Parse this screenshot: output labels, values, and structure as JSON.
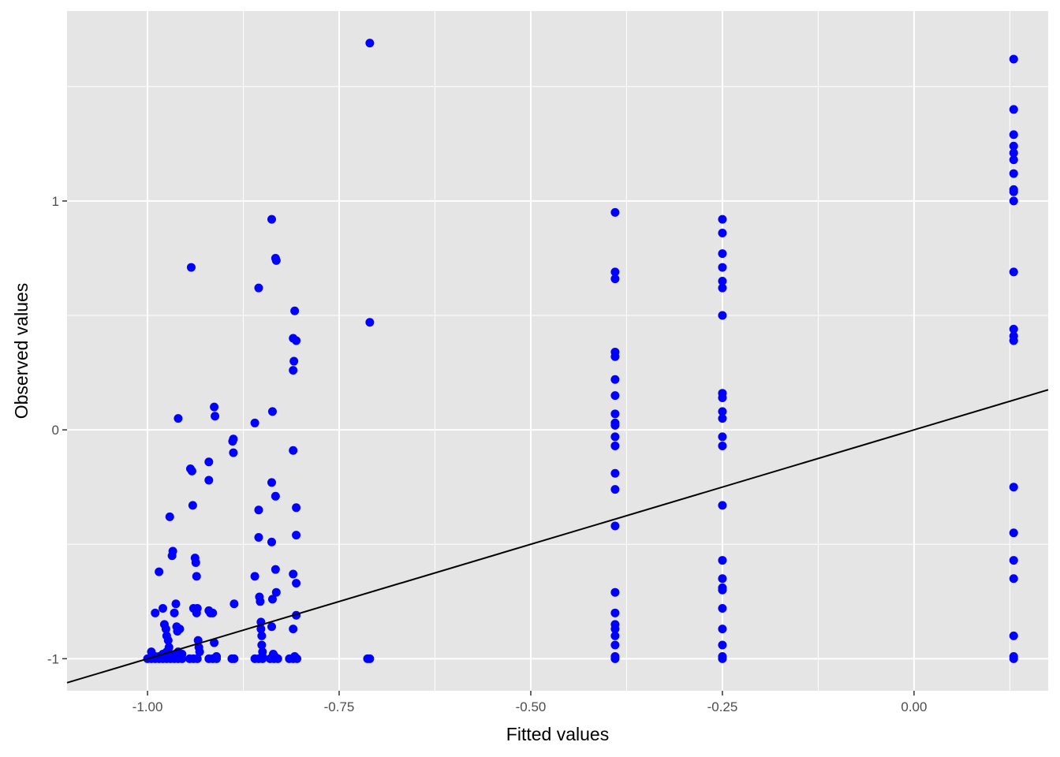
{
  "chart_data": {
    "type": "scatter",
    "title": "",
    "xlabel": "Fitted values",
    "ylabel": "Observed values",
    "xlim": [
      -1.105,
      0.175
    ],
    "ylim": [
      -1.14,
      1.83
    ],
    "x_ticks": [
      {
        "value": -1.0,
        "label": "-1.00"
      },
      {
        "value": -0.75,
        "label": "-0.75"
      },
      {
        "value": -0.5,
        "label": "-0.50"
      },
      {
        "value": -0.25,
        "label": "-0.25"
      },
      {
        "value": 0.0,
        "label": "0.00"
      }
    ],
    "y_ticks": [
      {
        "value": -1,
        "label": "-1"
      },
      {
        "value": 0,
        "label": "0"
      },
      {
        "value": 1,
        "label": "1"
      }
    ],
    "grid": true,
    "background": "#e5e5e5",
    "point_color": "#0000ff",
    "reference_line": {
      "intercept": 0,
      "slope": 1,
      "color": "#000000"
    },
    "series": [
      {
        "points": [
          [
            -1.0,
            -1.0
          ],
          [
            -0.995,
            -1.0
          ],
          [
            -0.99,
            -1.0
          ],
          [
            -0.985,
            -1.0
          ],
          [
            -0.98,
            -1.0
          ],
          [
            -0.975,
            -1.0
          ],
          [
            -0.97,
            -1.0
          ],
          [
            -0.965,
            -1.0
          ],
          [
            -0.96,
            -1.0
          ],
          [
            -0.955,
            -1.0
          ],
          [
            -0.995,
            -0.97
          ],
          [
            -0.99,
            -0.99
          ],
          [
            -0.985,
            -0.99
          ],
          [
            -0.98,
            -0.98
          ],
          [
            -0.975,
            -0.97
          ],
          [
            -0.97,
            -0.98
          ],
          [
            -0.965,
            -0.99
          ],
          [
            -0.96,
            -0.97
          ],
          [
            -0.955,
            -0.98
          ],
          [
            -0.99,
            -0.8
          ],
          [
            -0.985,
            -0.62
          ],
          [
            -0.98,
            -0.78
          ],
          [
            -0.978,
            -0.85
          ],
          [
            -0.976,
            -0.87
          ],
          [
            -0.975,
            -0.9
          ],
          [
            -0.973,
            -0.92
          ],
          [
            -0.972,
            -0.95
          ],
          [
            -0.971,
            -0.38
          ],
          [
            -0.968,
            -0.55
          ],
          [
            -0.967,
            -0.53
          ],
          [
            -0.965,
            -0.8
          ],
          [
            -0.963,
            -0.76
          ],
          [
            -0.962,
            -0.86
          ],
          [
            -0.961,
            -0.88
          ],
          [
            -0.96,
            0.05
          ],
          [
            -0.958,
            -0.87
          ],
          [
            -0.945,
            -1.0
          ],
          [
            -0.94,
            -1.0
          ],
          [
            -0.935,
            -1.0
          ],
          [
            -0.943,
            0.71
          ],
          [
            -0.944,
            -0.17
          ],
          [
            -0.942,
            -0.18
          ],
          [
            -0.941,
            -0.33
          ],
          [
            -0.94,
            -0.78
          ],
          [
            -0.938,
            -0.56
          ],
          [
            -0.937,
            -0.58
          ],
          [
            -0.936,
            -0.64
          ],
          [
            -0.935,
            -0.78
          ],
          [
            -0.934,
            -0.92
          ],
          [
            -0.933,
            -0.95
          ],
          [
            -0.932,
            -0.97
          ],
          [
            -0.936,
            -0.8
          ],
          [
            -0.92,
            -1.0
          ],
          [
            -0.915,
            -1.0
          ],
          [
            -0.91,
            -1.0
          ],
          [
            -0.912,
            0.06
          ],
          [
            -0.913,
            0.1
          ],
          [
            -0.92,
            -0.14
          ],
          [
            -0.92,
            -0.22
          ],
          [
            -0.92,
            -0.79
          ],
          [
            -0.918,
            -0.8
          ],
          [
            -0.915,
            -0.8
          ],
          [
            -0.913,
            -0.93
          ],
          [
            -0.91,
            -0.99
          ],
          [
            -0.89,
            -1.0
          ],
          [
            -0.887,
            -1.0
          ],
          [
            -0.888,
            -0.04
          ],
          [
            -0.889,
            -0.05
          ],
          [
            -0.888,
            -0.1
          ],
          [
            -0.887,
            -0.76
          ],
          [
            -0.86,
            -1.0
          ],
          [
            -0.855,
            -1.0
          ],
          [
            -0.85,
            -1.0
          ],
          [
            -0.86,
            0.03
          ],
          [
            -0.855,
            0.62
          ],
          [
            -0.86,
            -0.64
          ],
          [
            -0.855,
            -0.35
          ],
          [
            -0.855,
            -0.47
          ],
          [
            -0.854,
            -0.73
          ],
          [
            -0.853,
            -0.75
          ],
          [
            -0.852,
            -0.84
          ],
          [
            -0.852,
            -0.87
          ],
          [
            -0.851,
            -0.9
          ],
          [
            -0.851,
            -0.94
          ],
          [
            -0.85,
            -0.97
          ],
          [
            -0.85,
            -0.99
          ],
          [
            -0.84,
            -1.0
          ],
          [
            -0.835,
            -1.0
          ],
          [
            -0.83,
            -1.0
          ],
          [
            -0.838,
            0.92
          ],
          [
            -0.833,
            0.75
          ],
          [
            -0.832,
            0.74
          ],
          [
            -0.837,
            0.08
          ],
          [
            -0.838,
            -0.23
          ],
          [
            -0.833,
            -0.29
          ],
          [
            -0.838,
            -0.49
          ],
          [
            -0.833,
            -0.61
          ],
          [
            -0.832,
            -0.71
          ],
          [
            -0.837,
            -0.74
          ],
          [
            -0.838,
            -0.86
          ],
          [
            -0.836,
            -0.98
          ],
          [
            -0.834,
            -0.99
          ],
          [
            -0.815,
            -1.0
          ],
          [
            -0.81,
            -1.0
          ],
          [
            -0.805,
            -1.0
          ],
          [
            -0.808,
            0.52
          ],
          [
            -0.81,
            0.4
          ],
          [
            -0.806,
            0.39
          ],
          [
            -0.809,
            0.3
          ],
          [
            -0.81,
            0.26
          ],
          [
            -0.81,
            -0.09
          ],
          [
            -0.806,
            -0.34
          ],
          [
            -0.806,
            -0.46
          ],
          [
            -0.81,
            -0.63
          ],
          [
            -0.806,
            -0.67
          ],
          [
            -0.806,
            -0.81
          ],
          [
            -0.81,
            -0.87
          ],
          [
            -0.808,
            -0.99
          ],
          [
            -0.71,
            1.69
          ],
          [
            -0.71,
            0.47
          ],
          [
            -0.71,
            -1.0
          ],
          [
            -0.713,
            -1.0
          ],
          [
            -0.39,
            0.95
          ],
          [
            -0.39,
            0.69
          ],
          [
            -0.39,
            0.66
          ],
          [
            -0.39,
            0.34
          ],
          [
            -0.39,
            0.32
          ],
          [
            -0.39,
            0.22
          ],
          [
            -0.39,
            0.15
          ],
          [
            -0.39,
            0.07
          ],
          [
            -0.39,
            0.03
          ],
          [
            -0.39,
            0.02
          ],
          [
            -0.39,
            -0.03
          ],
          [
            -0.39,
            -0.07
          ],
          [
            -0.39,
            -0.19
          ],
          [
            -0.39,
            -0.26
          ],
          [
            -0.39,
            -0.42
          ],
          [
            -0.39,
            -0.71
          ],
          [
            -0.39,
            -0.8
          ],
          [
            -0.39,
            -0.85
          ],
          [
            -0.39,
            -0.87
          ],
          [
            -0.39,
            -0.9
          ],
          [
            -0.39,
            -0.94
          ],
          [
            -0.39,
            -0.99
          ],
          [
            -0.39,
            -1.0
          ],
          [
            -0.25,
            0.92
          ],
          [
            -0.25,
            0.86
          ],
          [
            -0.25,
            0.77
          ],
          [
            -0.25,
            0.71
          ],
          [
            -0.25,
            0.65
          ],
          [
            -0.25,
            0.62
          ],
          [
            -0.25,
            0.5
          ],
          [
            -0.25,
            0.16
          ],
          [
            -0.25,
            0.14
          ],
          [
            -0.25,
            0.08
          ],
          [
            -0.25,
            0.05
          ],
          [
            -0.25,
            -0.03
          ],
          [
            -0.25,
            -0.07
          ],
          [
            -0.25,
            -0.33
          ],
          [
            -0.25,
            -0.57
          ],
          [
            -0.25,
            -0.65
          ],
          [
            -0.25,
            -0.69
          ],
          [
            -0.25,
            -0.7
          ],
          [
            -0.25,
            -0.78
          ],
          [
            -0.25,
            -0.87
          ],
          [
            -0.25,
            -0.94
          ],
          [
            -0.25,
            -0.99
          ],
          [
            -0.25,
            -1.0
          ],
          [
            0.13,
            1.62
          ],
          [
            0.13,
            1.4
          ],
          [
            0.13,
            1.29
          ],
          [
            0.13,
            1.24
          ],
          [
            0.13,
            1.21
          ],
          [
            0.13,
            1.18
          ],
          [
            0.13,
            1.12
          ],
          [
            0.13,
            1.05
          ],
          [
            0.13,
            1.04
          ],
          [
            0.13,
            1.0
          ],
          [
            0.13,
            0.69
          ],
          [
            0.13,
            0.44
          ],
          [
            0.13,
            0.41
          ],
          [
            0.13,
            0.39
          ],
          [
            0.13,
            -0.25
          ],
          [
            0.13,
            -0.45
          ],
          [
            0.13,
            -0.57
          ],
          [
            0.13,
            -0.65
          ],
          [
            0.13,
            -0.9
          ],
          [
            0.13,
            -0.99
          ],
          [
            0.13,
            -1.0
          ]
        ]
      }
    ]
  }
}
